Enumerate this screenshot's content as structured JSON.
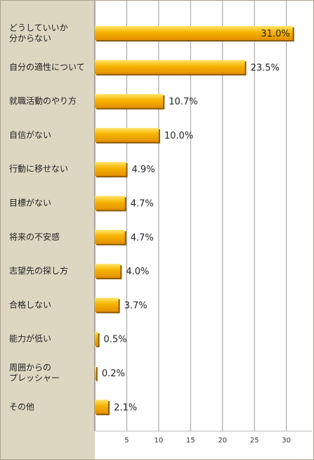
{
  "chart_data": {
    "type": "bar",
    "orientation": "horizontal",
    "title": "",
    "xlabel": "",
    "ylabel": "",
    "categories": [
      "どうしていいか\n分からない",
      "自分の適性について",
      "就職活動のやり方",
      "自信がない",
      "行動に移せない",
      "目標がない",
      "将来の不安感",
      "志望先の探し方",
      "合格しない",
      "能力が低い",
      "周囲からの\nプレッシャー",
      "その他"
    ],
    "values": [
      31.0,
      23.5,
      10.7,
      10.0,
      4.9,
      4.7,
      4.7,
      4.0,
      3.7,
      0.5,
      0.2,
      2.1
    ],
    "value_labels": [
      "31.0%",
      "23.5%",
      "10.7%",
      "10.0%",
      "4.9%",
      "4.7%",
      "4.7%",
      "4.0%",
      "3.7%",
      "0.5%",
      "0.2%",
      "2.1%"
    ],
    "xticks": [
      5,
      10,
      15,
      20,
      25,
      30
    ],
    "xlim": [
      0,
      34
    ],
    "grid": true,
    "colors": {
      "bar_top": "#ffe56a",
      "bar_mid": "#f7b300",
      "bar_bottom": "#e28f00",
      "bar_shadow": "#8a5a00",
      "label_panel": "#ddd6c1",
      "grid": "#9a9a9a"
    }
  }
}
